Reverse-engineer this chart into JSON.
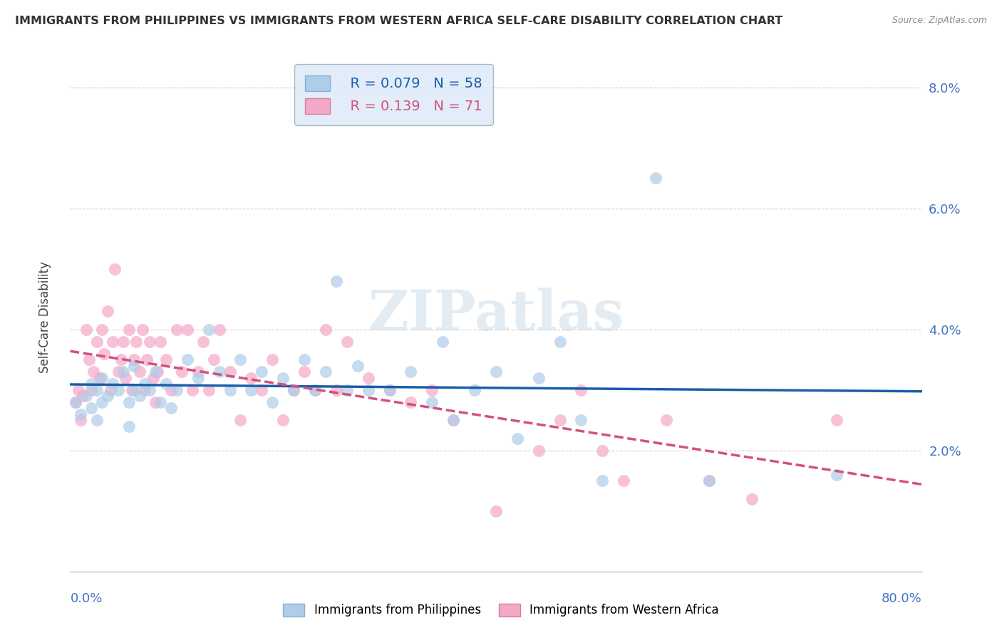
{
  "title": "IMMIGRANTS FROM PHILIPPINES VS IMMIGRANTS FROM WESTERN AFRICA SELF-CARE DISABILITY CORRELATION CHART",
  "source": "Source: ZipAtlas.com",
  "ylabel": "Self-Care Disability",
  "ylim": [
    0.0,
    0.085
  ],
  "xlim": [
    0.0,
    0.8
  ],
  "yticks": [
    0.0,
    0.02,
    0.04,
    0.06,
    0.08
  ],
  "ytick_labels": [
    "",
    "2.0%",
    "4.0%",
    "6.0%",
    "8.0%"
  ],
  "series1_label": "Immigrants from Philippines",
  "series1_color": "#aecde8",
  "series1_line_color": "#1a5fa8",
  "series1_R": "0.079",
  "series1_N": "58",
  "series2_label": "Immigrants from Western Africa",
  "series2_color": "#f4a8c8",
  "series2_line_color": "#d45080",
  "series2_R": "0.139",
  "series2_N": "71",
  "watermark": "ZIPatlas",
  "background_color": "#ffffff",
  "grid_color": "#d0d0d0",
  "legend_box_color": "#dce8f8",
  "blue_scatter_x": [
    0.005,
    0.01,
    0.015,
    0.02,
    0.02,
    0.025,
    0.025,
    0.03,
    0.03,
    0.035,
    0.04,
    0.045,
    0.05,
    0.055,
    0.055,
    0.06,
    0.06,
    0.065,
    0.07,
    0.075,
    0.08,
    0.085,
    0.09,
    0.095,
    0.1,
    0.11,
    0.12,
    0.13,
    0.14,
    0.15,
    0.16,
    0.17,
    0.18,
    0.19,
    0.2,
    0.21,
    0.22,
    0.23,
    0.24,
    0.25,
    0.26,
    0.27,
    0.28,
    0.3,
    0.32,
    0.34,
    0.35,
    0.36,
    0.38,
    0.4,
    0.42,
    0.44,
    0.46,
    0.48,
    0.5,
    0.55,
    0.6,
    0.72
  ],
  "blue_scatter_y": [
    0.028,
    0.026,
    0.029,
    0.031,
    0.027,
    0.03,
    0.025,
    0.032,
    0.028,
    0.029,
    0.031,
    0.03,
    0.033,
    0.028,
    0.024,
    0.03,
    0.034,
    0.029,
    0.031,
    0.03,
    0.033,
    0.028,
    0.031,
    0.027,
    0.03,
    0.035,
    0.032,
    0.04,
    0.033,
    0.03,
    0.035,
    0.03,
    0.033,
    0.028,
    0.032,
    0.03,
    0.035,
    0.03,
    0.033,
    0.048,
    0.03,
    0.034,
    0.03,
    0.03,
    0.033,
    0.028,
    0.038,
    0.025,
    0.03,
    0.033,
    0.022,
    0.032,
    0.038,
    0.025,
    0.015,
    0.065,
    0.015,
    0.016
  ],
  "pink_scatter_x": [
    0.005,
    0.008,
    0.01,
    0.012,
    0.015,
    0.018,
    0.02,
    0.022,
    0.025,
    0.028,
    0.03,
    0.032,
    0.035,
    0.038,
    0.04,
    0.042,
    0.045,
    0.048,
    0.05,
    0.052,
    0.055,
    0.058,
    0.06,
    0.062,
    0.065,
    0.068,
    0.07,
    0.072,
    0.075,
    0.078,
    0.08,
    0.082,
    0.085,
    0.09,
    0.095,
    0.1,
    0.105,
    0.11,
    0.115,
    0.12,
    0.125,
    0.13,
    0.135,
    0.14,
    0.15,
    0.16,
    0.17,
    0.18,
    0.19,
    0.2,
    0.21,
    0.22,
    0.23,
    0.24,
    0.25,
    0.26,
    0.28,
    0.3,
    0.32,
    0.34,
    0.36,
    0.4,
    0.44,
    0.46,
    0.48,
    0.5,
    0.52,
    0.56,
    0.6,
    0.64,
    0.72
  ],
  "pink_scatter_y": [
    0.028,
    0.03,
    0.025,
    0.029,
    0.04,
    0.035,
    0.03,
    0.033,
    0.038,
    0.032,
    0.04,
    0.036,
    0.043,
    0.03,
    0.038,
    0.05,
    0.033,
    0.035,
    0.038,
    0.032,
    0.04,
    0.03,
    0.035,
    0.038,
    0.033,
    0.04,
    0.03,
    0.035,
    0.038,
    0.032,
    0.028,
    0.033,
    0.038,
    0.035,
    0.03,
    0.04,
    0.033,
    0.04,
    0.03,
    0.033,
    0.038,
    0.03,
    0.035,
    0.04,
    0.033,
    0.025,
    0.032,
    0.03,
    0.035,
    0.025,
    0.03,
    0.033,
    0.03,
    0.04,
    0.03,
    0.038,
    0.032,
    0.03,
    0.028,
    0.03,
    0.025,
    0.01,
    0.02,
    0.025,
    0.03,
    0.02,
    0.015,
    0.025,
    0.015,
    0.012,
    0.025
  ]
}
